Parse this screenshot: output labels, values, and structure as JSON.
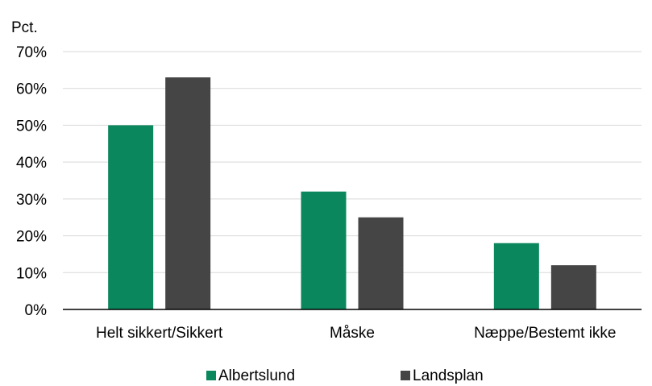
{
  "chart_data": {
    "type": "bar",
    "unit_label": "Pct.",
    "categories": [
      "Helt sikkert/Sikkert",
      "Måske",
      "Næppe/Bestemt ikke"
    ],
    "series": [
      {
        "name": "Albertslund",
        "values": [
          50,
          32,
          18
        ],
        "color": "#0a875c"
      },
      {
        "name": "Landsplan",
        "values": [
          63,
          25,
          12
        ],
        "color": "#454545"
      }
    ],
    "ylim": [
      0,
      70
    ],
    "yticks": [
      "0%",
      "10%",
      "20%",
      "30%",
      "40%",
      "50%",
      "60%",
      "70%"
    ],
    "grid": true,
    "legend_position": "bottom"
  }
}
